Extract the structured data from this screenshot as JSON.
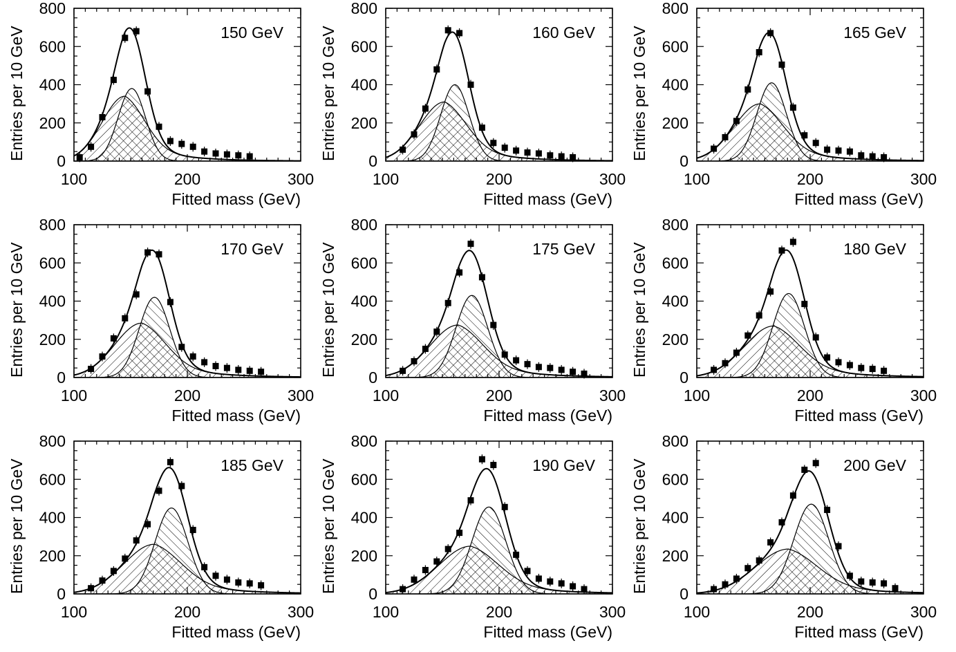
{
  "figure": {
    "xlabel": "Fitted mass (GeV)",
    "ylabel": "Entries per 10 GeV",
    "xticks": [
      "100",
      "200",
      "300"
    ],
    "yticks": [
      "0",
      "200",
      "400",
      "600",
      "800"
    ]
  },
  "chart_data": [
    {
      "type": "scatter",
      "title": "150 GeV",
      "xlabel": "Fitted mass (GeV)",
      "ylabel": "Entries per 10 GeV",
      "xlim": [
        100,
        300
      ],
      "ylim": [
        0,
        800
      ],
      "points": {
        "x": [
          105,
          115,
          125,
          135,
          145,
          155,
          165,
          175,
          185,
          195,
          205,
          215,
          225,
          235,
          245,
          255
        ],
        "y": [
          20,
          75,
          230,
          425,
          645,
          680,
          365,
          180,
          105,
          90,
          75,
          50,
          40,
          35,
          30,
          25
        ]
      },
      "signal": {
        "amp": 380,
        "mean": 151,
        "sigma": 12
      },
      "background": {
        "amp": 340,
        "peak": 145,
        "sigma_left": 20,
        "tail": 35
      },
      "series": [
        {
          "name": "",
          "description_key": "data",
          "values": [
            20,
            75,
            230,
            425,
            645,
            680,
            365,
            180,
            105,
            90,
            75,
            50,
            40,
            35,
            30,
            25
          ]
        }
      ]
    },
    {
      "type": "scatter",
      "title": "160 GeV",
      "xlabel": "Fitted mass (GeV)",
      "ylabel": "Entries per 10 GeV",
      "xlim": [
        100,
        300
      ],
      "ylim": [
        0,
        800
      ],
      "points": {
        "x": [
          115,
          125,
          135,
          145,
          155,
          165,
          175,
          185,
          195,
          205,
          215,
          225,
          235,
          245,
          255,
          265
        ],
        "y": [
          60,
          140,
          275,
          480,
          685,
          670,
          400,
          175,
          95,
          70,
          55,
          45,
          40,
          30,
          25,
          20
        ]
      },
      "signal": {
        "amp": 400,
        "mean": 161,
        "sigma": 12.5
      },
      "background": {
        "amp": 310,
        "peak": 152,
        "sigma_left": 22,
        "tail": 38
      }
    },
    {
      "type": "scatter",
      "title": "165 GeV",
      "xlabel": "Fitted mass (GeV)",
      "ylabel": "Entries per 10 GeV",
      "xlim": [
        100,
        300
      ],
      "ylim": [
        0,
        800
      ],
      "points": {
        "x": [
          115,
          125,
          135,
          145,
          155,
          165,
          175,
          185,
          195,
          205,
          215,
          225,
          235,
          245,
          255,
          265
        ],
        "y": [
          65,
          125,
          210,
          375,
          570,
          670,
          505,
          280,
          135,
          95,
          60,
          55,
          50,
          30,
          25,
          20
        ]
      },
      "signal": {
        "amp": 410,
        "mean": 166,
        "sigma": 13
      },
      "background": {
        "amp": 300,
        "peak": 156,
        "sigma_left": 23,
        "tail": 40
      }
    },
    {
      "type": "scatter",
      "title": "170 GeV",
      "xlabel": "Fitted mass (GeV)",
      "ylabel": "Entries per 10 GeV",
      "xlim": [
        100,
        300
      ],
      "ylim": [
        0,
        800
      ],
      "points": {
        "x": [
          115,
          125,
          135,
          145,
          155,
          165,
          175,
          185,
          195,
          205,
          215,
          225,
          235,
          245,
          255,
          265
        ],
        "y": [
          45,
          110,
          205,
          310,
          435,
          655,
          645,
          395,
          160,
          110,
          80,
          60,
          50,
          40,
          35,
          30
        ]
      },
      "signal": {
        "amp": 420,
        "mean": 171,
        "sigma": 13.5
      },
      "background": {
        "amp": 285,
        "peak": 160,
        "sigma_left": 24,
        "tail": 42
      }
    },
    {
      "type": "scatter",
      "title": "175 GeV",
      "xlabel": "Fitted mass (GeV)",
      "ylabel": "Entries per 10 GeV",
      "xlim": [
        100,
        300
      ],
      "ylim": [
        0,
        800
      ],
      "points": {
        "x": [
          115,
          125,
          135,
          145,
          155,
          165,
          175,
          185,
          195,
          205,
          215,
          225,
          235,
          245,
          255,
          265,
          275
        ],
        "y": [
          35,
          85,
          150,
          240,
          390,
          550,
          700,
          525,
          275,
          120,
          90,
          70,
          55,
          50,
          40,
          30,
          20
        ]
      },
      "signal": {
        "amp": 430,
        "mean": 176,
        "sigma": 14
      },
      "background": {
        "amp": 275,
        "peak": 164,
        "sigma_left": 25,
        "tail": 44
      }
    },
    {
      "type": "scatter",
      "title": "180 GeV",
      "xlabel": "Fitted mass (GeV)",
      "ylabel": "Entries per 10 GeV",
      "xlim": [
        100,
        300
      ],
      "ylim": [
        0,
        800
      ],
      "points": {
        "x": [
          115,
          125,
          135,
          145,
          155,
          165,
          175,
          185,
          195,
          205,
          215,
          225,
          235,
          245,
          255,
          265
        ],
        "y": [
          40,
          75,
          130,
          220,
          325,
          450,
          665,
          710,
          385,
          210,
          105,
          80,
          65,
          50,
          45,
          35
        ]
      },
      "signal": {
        "amp": 440,
        "mean": 181,
        "sigma": 14
      },
      "background": {
        "amp": 270,
        "peak": 168,
        "sigma_left": 26,
        "tail": 45
      }
    },
    {
      "type": "scatter",
      "title": "185 GeV",
      "xlabel": "Fitted mass (GeV)",
      "ylabel": "Entries per 10 GeV",
      "xlim": [
        100,
        300
      ],
      "ylim": [
        0,
        800
      ],
      "points": {
        "x": [
          115,
          125,
          135,
          145,
          155,
          165,
          175,
          185,
          195,
          205,
          215,
          225,
          235,
          245,
          255,
          265
        ],
        "y": [
          30,
          70,
          120,
          185,
          280,
          365,
          540,
          690,
          565,
          335,
          140,
          95,
          75,
          60,
          55,
          45
        ]
      },
      "signal": {
        "amp": 450,
        "mean": 186,
        "sigma": 14.5
      },
      "background": {
        "amp": 260,
        "peak": 171,
        "sigma_left": 27,
        "tail": 46
      }
    },
    {
      "type": "scatter",
      "title": "190 GeV",
      "xlabel": "Fitted mass (GeV)",
      "ylabel": "Entries per 10 GeV",
      "xlim": [
        100,
        300
      ],
      "ylim": [
        0,
        800
      ],
      "points": {
        "x": [
          115,
          125,
          135,
          145,
          155,
          165,
          175,
          185,
          195,
          205,
          215,
          225,
          235,
          245,
          255,
          265,
          275
        ],
        "y": [
          25,
          75,
          125,
          170,
          235,
          320,
          490,
          705,
          675,
          455,
          205,
          120,
          80,
          65,
          55,
          40,
          25
        ]
      },
      "signal": {
        "amp": 455,
        "mean": 191,
        "sigma": 15
      },
      "background": {
        "amp": 250,
        "peak": 175,
        "sigma_left": 28,
        "tail": 47
      }
    },
    {
      "type": "scatter",
      "title": "200 GeV",
      "xlabel": "Fitted mass (GeV)",
      "ylabel": "Entries per 10 GeV",
      "xlim": [
        100,
        300
      ],
      "ylim": [
        0,
        800
      ],
      "points": {
        "x": [
          115,
          125,
          135,
          145,
          155,
          165,
          175,
          185,
          195,
          205,
          215,
          225,
          235,
          245,
          255,
          265,
          275
        ],
        "y": [
          25,
          50,
          80,
          135,
          175,
          270,
          375,
          515,
          650,
          685,
          440,
          250,
          95,
          65,
          60,
          55,
          30
        ]
      },
      "signal": {
        "amp": 470,
        "mean": 201,
        "sigma": 15.5
      },
      "background": {
        "amp": 235,
        "peak": 181,
        "sigma_left": 29,
        "tail": 48
      }
    }
  ]
}
